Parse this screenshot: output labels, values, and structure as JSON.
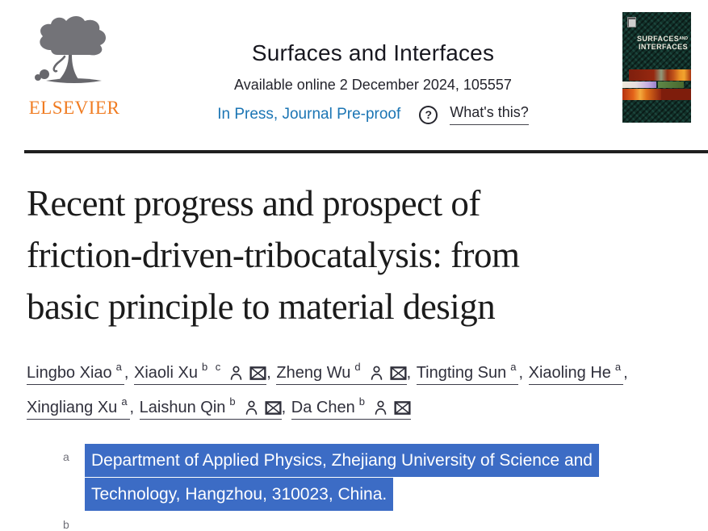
{
  "header": {
    "publisher_wordmark": "ELSEVIER",
    "journal_title": "Surfaces and Interfaces",
    "availability": "Available online 2 December 2024, 105557",
    "status": "In Press, Journal Pre-proof",
    "help_icon": "?",
    "whats_this": "What's this?",
    "cover_title_line1": "SURFACES",
    "cover_title_and": "AND",
    "cover_title_line2": "INTERFACES"
  },
  "article": {
    "title": "Recent progress and prospect of friction-driven-tribocatalysis: from basic principle to material design",
    "title_lines": [
      "Recent progress and prospect of",
      "friction-driven-tribocatalysis: from",
      "basic principle to material design"
    ],
    "authors": [
      {
        "name": "Lingbo Xiao",
        "sups": [
          "a"
        ],
        "has_profile": false,
        "has_email": false
      },
      {
        "name": "Xiaoli Xu",
        "sups": [
          "b",
          "c"
        ],
        "has_profile": true,
        "has_email": true
      },
      {
        "name": "Zheng Wu",
        "sups": [
          "d"
        ],
        "has_profile": true,
        "has_email": true
      },
      {
        "name": "Tingting Sun",
        "sups": [
          "a"
        ],
        "has_profile": false,
        "has_email": false
      },
      {
        "name": "Xiaoling He",
        "sups": [
          "a"
        ],
        "has_profile": false,
        "has_email": false
      },
      {
        "name": "Xingliang Xu",
        "sups": [
          "a"
        ],
        "has_profile": false,
        "has_email": false
      },
      {
        "name": "Laishun Qin",
        "sups": [
          "b"
        ],
        "has_profile": true,
        "has_email": true
      },
      {
        "name": "Da Chen",
        "sups": [
          "b"
        ],
        "has_profile": true,
        "has_email": true
      }
    ],
    "affiliations": [
      {
        "label": "a",
        "text": "Department of Applied Physics, Zhejiang University of Science and Technology, Hangzhou, 310023, China.",
        "highlighted": true
      },
      {
        "label": "b",
        "text": "",
        "highlighted": false
      }
    ]
  },
  "colors": {
    "elsevier_orange": "#f07c22",
    "link_blue": "#1b75b4",
    "selection_highlight": "#3c6cc5",
    "rule_dark": "#1f1f1f"
  },
  "icons": {
    "person": "person-icon",
    "email": "email-icon",
    "help": "question-mark-icon",
    "logo": "elsevier-tree-icon"
  }
}
